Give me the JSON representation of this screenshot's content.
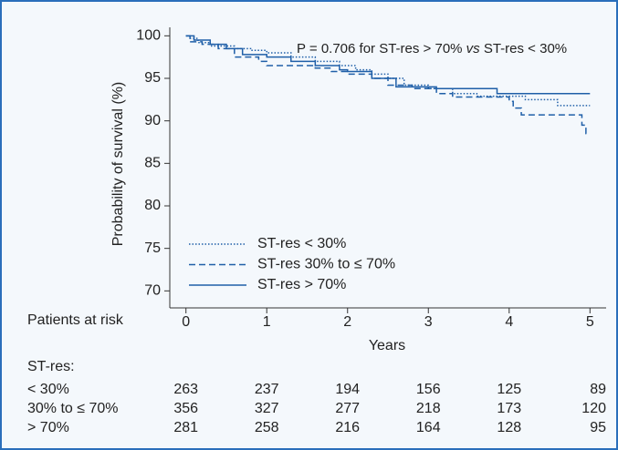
{
  "chart_data": {
    "type": "step",
    "annotation": [
      "P = 0.706 for ST-res > 70% ",
      "vs",
      " ST-res < 30%"
    ],
    "ylabel": "Probability of survival (%)",
    "xlabel": "Years",
    "xlim": [
      -0.2,
      5.2
    ],
    "xticks": [
      0,
      1,
      2,
      3,
      4,
      5
    ],
    "ylim": [
      68,
      101
    ],
    "yticks": [
      70,
      75,
      80,
      85,
      90,
      95,
      100
    ],
    "legend": "lower left",
    "series": [
      {
        "name": "ST-res < 30%",
        "color": "#1f5fa8",
        "dash": "dotted",
        "x": [
          0,
          0.05,
          0.15,
          0.3,
          0.6,
          0.8,
          1.0,
          1.3,
          1.6,
          1.9,
          2.1,
          2.3,
          2.5,
          2.7,
          3.0,
          3.3,
          3.6,
          4.2,
          4.6,
          5
        ],
        "values": [
          100,
          99.7,
          99.2,
          98.8,
          98.5,
          98.3,
          98.0,
          97.5,
          97.0,
          96.5,
          96.0,
          95.5,
          95.0,
          94.2,
          93.8,
          93.2,
          92.9,
          92.5,
          91.8,
          91.8
        ]
      },
      {
        "name": "ST-res 30% to ≤ 70%",
        "color": "#1f5fa8",
        "dash": "dashed",
        "x": [
          0,
          0.05,
          0.2,
          0.4,
          0.6,
          0.9,
          1.0,
          1.6,
          1.8,
          2.0,
          2.3,
          2.5,
          2.8,
          3.1,
          3.3,
          4.0,
          4.05,
          4.15,
          4.9,
          4.95,
          5
        ],
        "values": [
          100,
          99.3,
          99.0,
          98.5,
          97.5,
          97.0,
          96.5,
          96.2,
          95.8,
          95.5,
          95.0,
          94.2,
          93.8,
          93.2,
          92.8,
          92.3,
          91.5,
          90.7,
          89.5,
          88.5,
          88.5
        ]
      },
      {
        "name": "ST-res > 70%",
        "color": "#1f5fa8",
        "dash": "solid",
        "x": [
          0,
          0.1,
          0.3,
          0.5,
          0.7,
          1.0,
          1.3,
          1.6,
          1.9,
          2.0,
          2.3,
          2.6,
          3.1,
          3.85,
          5
        ],
        "values": [
          100,
          99.5,
          99.0,
          98.5,
          97.8,
          97.5,
          97.0,
          96.5,
          96.0,
          95.8,
          95.0,
          94.0,
          93.8,
          93.2,
          93.2
        ]
      }
    ],
    "risk_table": {
      "title": "Patients at risk",
      "group_label": "ST-res:",
      "rows": [
        {
          "label": "< 30%",
          "counts": [
            263,
            237,
            194,
            156,
            125,
            89
          ]
        },
        {
          "label": "30% to ≤ 70%",
          "counts": [
            356,
            327,
            277,
            218,
            173,
            120
          ]
        },
        {
          "label": "> 70%",
          "counts": [
            281,
            258,
            216,
            164,
            128,
            95
          ]
        }
      ]
    }
  }
}
